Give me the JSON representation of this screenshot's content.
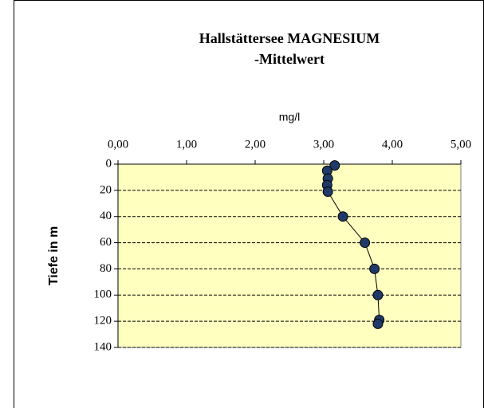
{
  "chart_data": {
    "type": "scatter",
    "title": [
      "Hallstättersee MAGNESIUM",
      "-Mittelwert"
    ],
    "x_label": "mg/l",
    "y_label": "Tiefe in m",
    "x": [
      3.16,
      3.05,
      3.06,
      3.05,
      3.06,
      3.28,
      3.6,
      3.74,
      3.79,
      3.81,
      3.79
    ],
    "values": [
      1,
      5,
      11,
      16,
      21,
      40,
      60,
      80,
      100,
      119,
      122
    ],
    "color": "#1f3a68",
    "line_color": "#000000",
    "plot_background": "#ffffc0",
    "xlim": [
      0,
      5
    ],
    "xticks": [
      {
        "value": 0,
        "label": "0,00"
      },
      {
        "value": 1,
        "label": "1,00"
      },
      {
        "value": 2,
        "label": "2,00"
      },
      {
        "value": 3,
        "label": "3,00"
      },
      {
        "value": 4,
        "label": "4,00"
      },
      {
        "value": 5,
        "label": "5,00"
      }
    ],
    "ylim": [
      0,
      140
    ],
    "yticks": [
      0,
      20,
      40,
      60,
      80,
      100,
      120,
      140
    ],
    "y_inverted": true,
    "grid": true
  }
}
